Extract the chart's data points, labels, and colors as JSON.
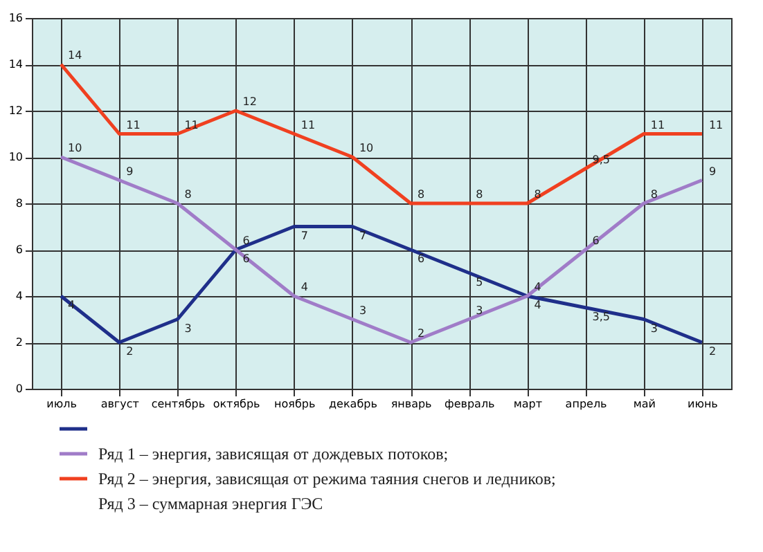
{
  "chart_data": {
    "type": "line",
    "categories": [
      "июль",
      "август",
      "сентябрь",
      "октябрь",
      "ноябрь",
      "декабрь",
      "январь",
      "февраль",
      "март",
      "апрель",
      "май",
      "июнь"
    ],
    "series": [
      {
        "color": "#1f2f8a",
        "values": [
          4,
          2,
          3,
          6,
          7,
          7,
          6,
          5,
          4,
          3.5,
          3,
          2
        ],
        "value_labels": [
          "4",
          "2",
          "3",
          "6",
          "7",
          "7",
          "6",
          "5",
          "4",
          "3,5",
          "3",
          "2"
        ]
      },
      {
        "name": "Ряд 1 – энергия, зависящая от дождевых потоков;",
        "color": "#a07cc8",
        "values": [
          10,
          9,
          8,
          6,
          4,
          3,
          2,
          3,
          4,
          6,
          8,
          9
        ],
        "value_labels": [
          "10",
          "9",
          "8",
          "6",
          "4",
          "3",
          "2",
          "3",
          "4",
          "6",
          "8",
          "9"
        ]
      },
      {
        "name": "Ряд 2 – энергия, зависящая от режима таяния снегов и ледников;",
        "color": "#f04020",
        "values": [
          14,
          11,
          11,
          12,
          11,
          10,
          8,
          8,
          8,
          9.5,
          11,
          11
        ],
        "value_labels": [
          "14",
          "11",
          "11",
          "12",
          "11",
          "10",
          "8",
          "8",
          "8",
          "9,5",
          "11",
          "11"
        ]
      }
    ],
    "annotations": [
      "Ряд 3 – суммарная энергия ГЭС"
    ],
    "ylim": [
      0,
      16
    ],
    "yticks": [
      0,
      2,
      4,
      6,
      8,
      10,
      12,
      14,
      16
    ],
    "grid": true,
    "legend": "bottom",
    "line_style": "solid"
  }
}
